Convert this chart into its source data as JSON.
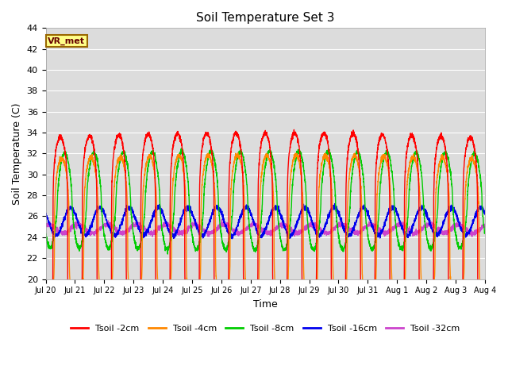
{
  "title": "Soil Temperature Set 3",
  "xlabel": "Time",
  "ylabel": "Soil Temperature (C)",
  "ylim": [
    20,
    44
  ],
  "yticks": [
    20,
    22,
    24,
    26,
    28,
    30,
    32,
    34,
    36,
    38,
    40,
    42,
    44
  ],
  "bg_color": "#dcdcdc",
  "fig_color": "#ffffff",
  "annotation_text": "VR_met",
  "annotation_bg": "#ffff88",
  "annotation_border": "#996600",
  "series": [
    {
      "label": "Tsoil -2cm",
      "color": "#ff0000",
      "base": 24.0,
      "amp": 9.5,
      "phase": 0.0,
      "sharpness": 4.0
    },
    {
      "label": "Tsoil -4cm",
      "color": "#ff8800",
      "base": 24.0,
      "amp": 7.5,
      "phase": 0.05,
      "sharpness": 3.0
    },
    {
      "label": "Tsoil -8cm",
      "color": "#00cc00",
      "base": 27.5,
      "amp": 4.5,
      "phase": 0.15,
      "sharpness": 1.5
    },
    {
      "label": "Tsoil -16cm",
      "color": "#0000ee",
      "base": 25.5,
      "amp": 1.3,
      "phase": 0.35,
      "sharpness": 1.0
    },
    {
      "label": "Tsoil -32cm",
      "color": "#cc44cc",
      "base": 24.8,
      "amp": 0.4,
      "phase": 0.6,
      "sharpness": 1.0
    }
  ],
  "x_start": 0,
  "x_end": 15,
  "n_points": 3600,
  "xtick_positions": [
    0,
    1,
    2,
    3,
    4,
    5,
    6,
    7,
    8,
    9,
    10,
    11,
    12,
    13,
    14,
    15
  ],
  "xtick_labels": [
    "Jul 20",
    "Jul 21",
    "Jul 22",
    "Jul 23",
    "Jul 24",
    "Jul 25",
    "Jul 26",
    "Jul 27",
    "Jul 28",
    "Jul 29",
    "Jul 30",
    "Jul 31",
    "Aug 1",
    "Aug 2",
    "Aug 3",
    "Aug 4"
  ]
}
